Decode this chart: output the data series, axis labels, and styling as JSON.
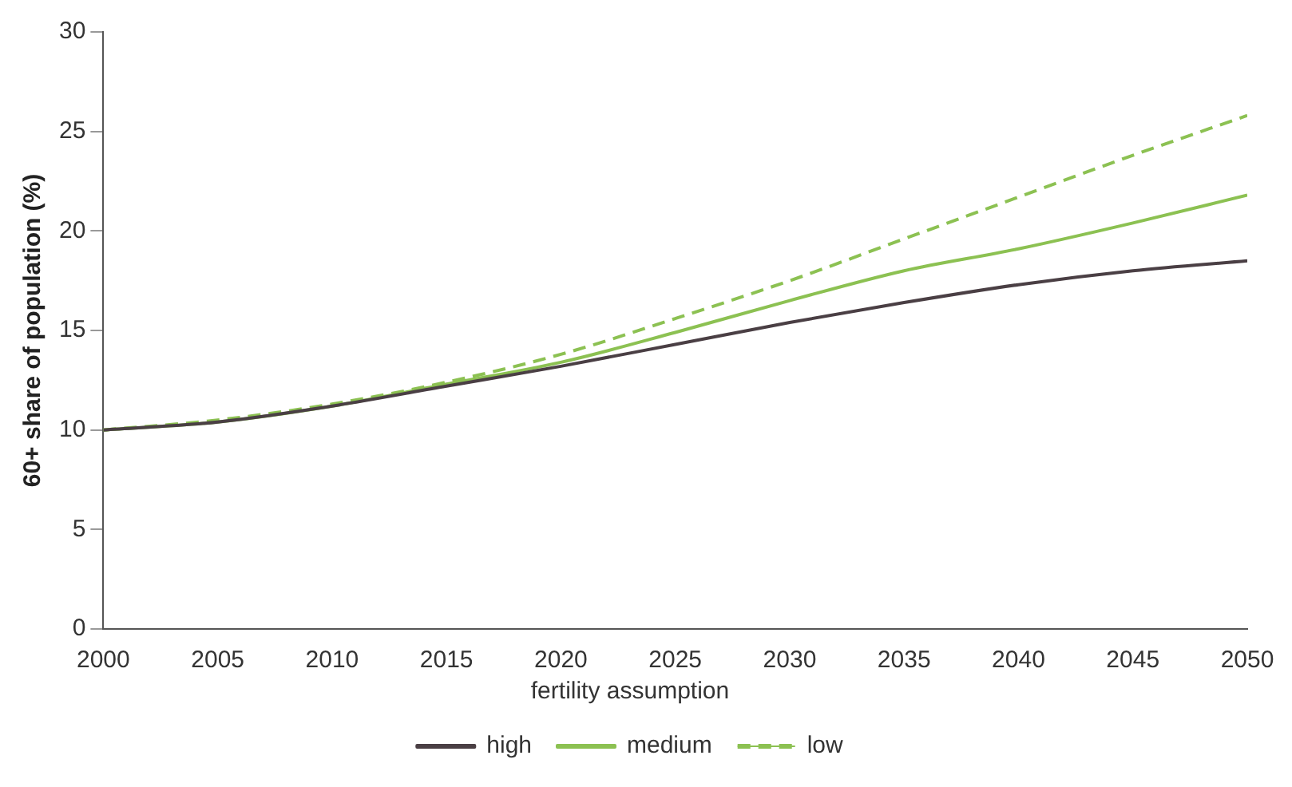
{
  "chart_data": {
    "type": "line",
    "ylabel": "60+ share of population (%)",
    "legend_title": "fertility assumption",
    "legend": "bottom",
    "grid": false,
    "marker": "none",
    "x": [
      2000,
      2005,
      2010,
      2015,
      2020,
      2025,
      2030,
      2035,
      2040,
      2045,
      2050
    ],
    "xlim": [
      2000,
      2050
    ],
    "xticks": [
      2000,
      2005,
      2010,
      2015,
      2020,
      2025,
      2030,
      2035,
      2040,
      2045,
      2050
    ],
    "ylim": [
      0,
      30
    ],
    "yticks": [
      0,
      5,
      10,
      15,
      20,
      25,
      30
    ],
    "series": [
      {
        "name": "high",
        "color": "#4a3f44",
        "line_style": "solid",
        "values": [
          10.0,
          10.4,
          11.2,
          12.2,
          13.2,
          14.3,
          15.4,
          16.4,
          17.3,
          18.0,
          18.5
        ]
      },
      {
        "name": "medium",
        "color": "#8cc152",
        "line_style": "solid",
        "values": [
          10.0,
          10.4,
          11.2,
          12.3,
          13.4,
          14.9,
          16.5,
          18.0,
          19.1,
          20.4,
          21.8
        ]
      },
      {
        "name": "low",
        "color": "#8cc152",
        "line_style": "dashed",
        "values": [
          10.0,
          10.5,
          11.3,
          12.4,
          13.8,
          15.6,
          17.5,
          19.6,
          21.7,
          23.8,
          25.8
        ]
      }
    ]
  }
}
